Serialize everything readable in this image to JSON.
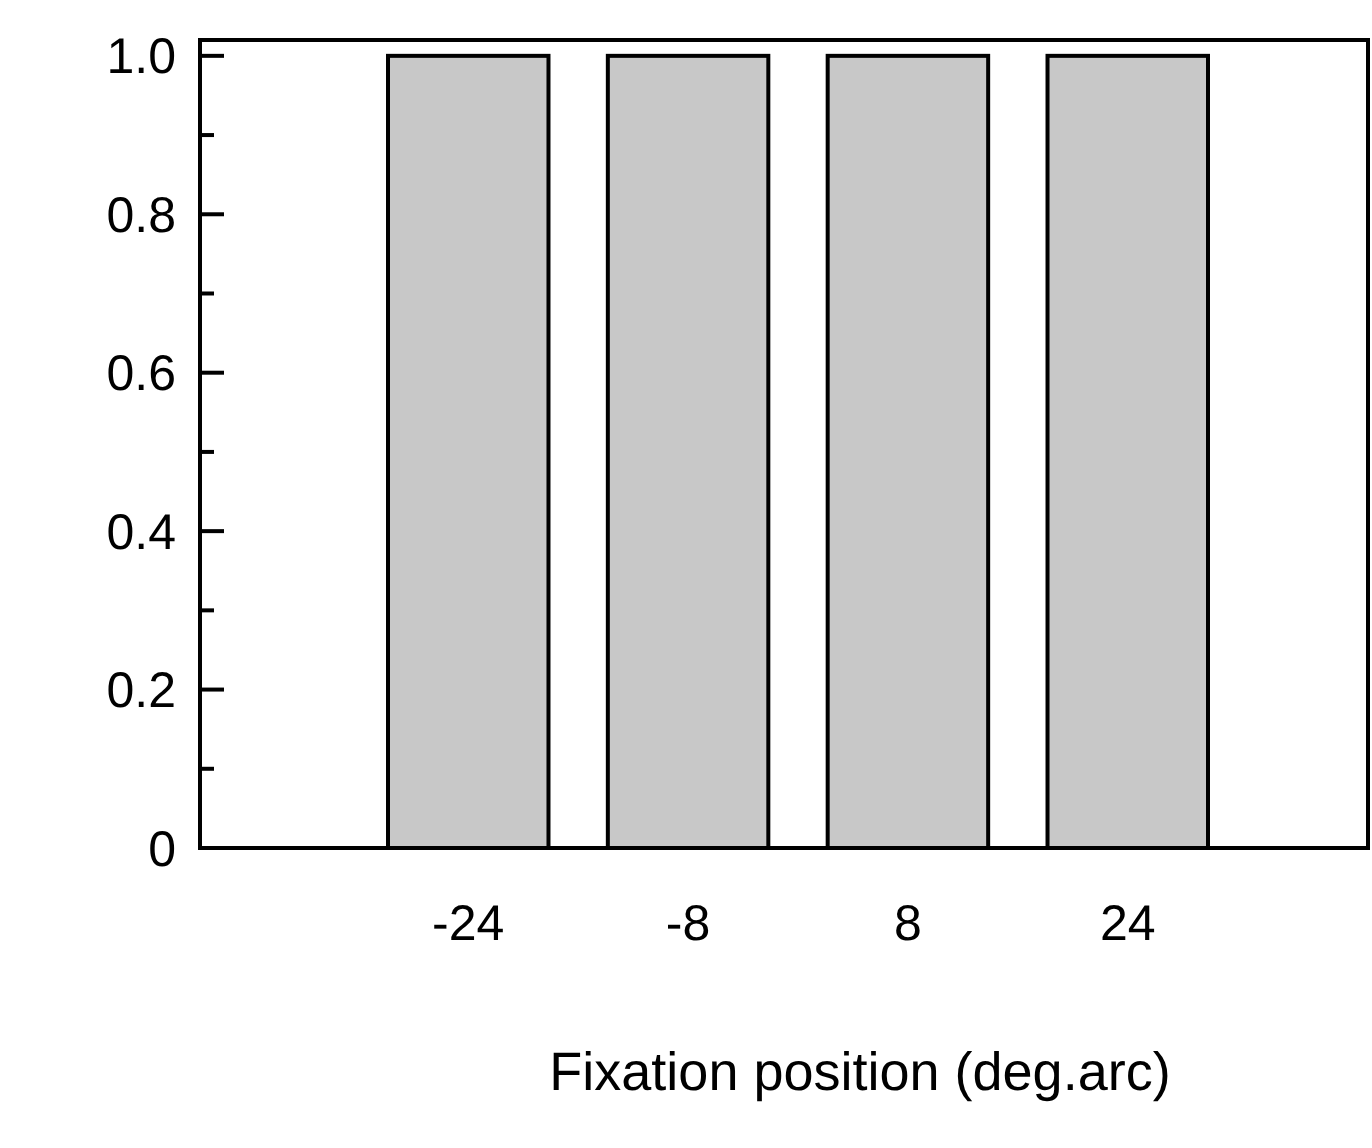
{
  "chart_data": {
    "type": "bar",
    "xlabel": "Fixation position (deg.arc)",
    "categories": [
      "-24",
      "-8",
      "8",
      "24"
    ],
    "values": [
      1.0,
      1.0,
      1.0,
      1.0
    ],
    "color": "#c8c8c8",
    "ylim": [
      0,
      1.02
    ],
    "yticks": [
      0,
      {
        "value": 0.1,
        "label": null
      },
      {
        "value": 0.2,
        "label": "0.2"
      },
      {
        "value": 0.3,
        "label": null
      },
      {
        "value": 0.4,
        "label": "0.4"
      },
      {
        "value": 0.5,
        "label": null
      },
      {
        "value": 0.6,
        "label": "0.6"
      },
      {
        "value": 0.7,
        "label": null
      },
      {
        "value": 0.8,
        "label": "0.8"
      },
      {
        "value": 0.9,
        "label": null
      },
      {
        "value": 1.0,
        "label": "1.0"
      }
    ],
    "grid": false
  }
}
